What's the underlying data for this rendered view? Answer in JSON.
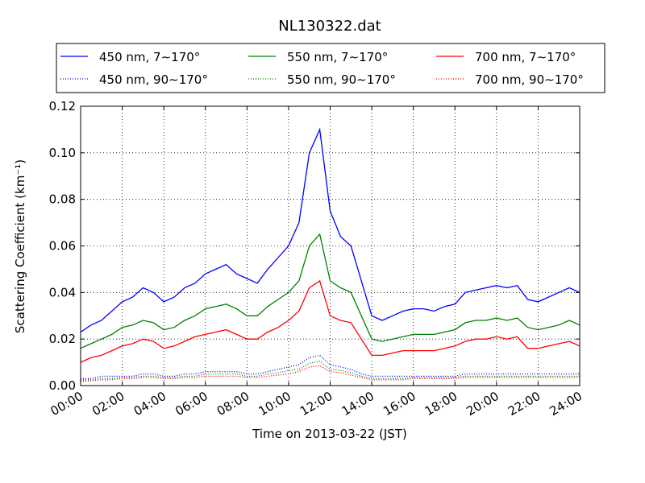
{
  "chart_data": {
    "type": "line",
    "title": "NL130322.dat",
    "x_label": "Time on 2013-03-22 (JST)",
    "y_label": "Scattering Coefficient (km⁻¹)",
    "x": [
      0,
      0.5,
      1,
      1.5,
      2,
      2.5,
      3,
      3.5,
      4,
      4.5,
      5,
      5.5,
      6,
      6.5,
      7,
      7.5,
      8,
      8.5,
      9,
      9.5,
      10,
      10.5,
      11,
      11.5,
      12,
      12.5,
      13,
      13.5,
      14,
      14.5,
      15,
      15.5,
      16,
      16.5,
      17,
      17.5,
      18,
      18.5,
      19,
      19.5,
      20,
      20.5,
      21,
      21.5,
      22,
      22.5,
      23,
      23.5,
      24
    ],
    "series": [
      {
        "name": "450 nm, 7∼170°",
        "color": "#0000ff",
        "dash": "solid",
        "values": [
          0.023,
          0.026,
          0.028,
          0.032,
          0.036,
          0.038,
          0.042,
          0.04,
          0.036,
          0.038,
          0.042,
          0.044,
          0.048,
          0.05,
          0.052,
          0.048,
          0.046,
          0.044,
          0.05,
          0.055,
          0.06,
          0.07,
          0.1,
          0.11,
          0.075,
          0.064,
          0.06,
          0.045,
          0.03,
          0.028,
          0.03,
          0.032,
          0.033,
          0.033,
          0.032,
          0.034,
          0.035,
          0.04,
          0.041,
          0.042,
          0.043,
          0.042,
          0.043,
          0.037,
          0.036,
          0.038,
          0.04,
          0.042,
          0.04
        ]
      },
      {
        "name": "450 nm, 90∼170°",
        "color": "#0000ff",
        "dash": "dotted",
        "values": [
          0.003,
          0.003,
          0.004,
          0.004,
          0.004,
          0.004,
          0.005,
          0.005,
          0.004,
          0.004,
          0.005,
          0.005,
          0.006,
          0.006,
          0.006,
          0.006,
          0.005,
          0.005,
          0.006,
          0.007,
          0.008,
          0.009,
          0.012,
          0.013,
          0.009,
          0.008,
          0.007,
          0.005,
          0.004,
          0.004,
          0.004,
          0.004,
          0.004,
          0.004,
          0.004,
          0.004,
          0.004,
          0.005,
          0.005,
          0.005,
          0.005,
          0.005,
          0.005,
          0.005,
          0.005,
          0.005,
          0.005,
          0.005,
          0.005
        ]
      },
      {
        "name": "550 nm, 7∼170°",
        "color": "#008000",
        "dash": "solid",
        "values": [
          0.016,
          0.018,
          0.02,
          0.022,
          0.025,
          0.026,
          0.028,
          0.027,
          0.024,
          0.025,
          0.028,
          0.03,
          0.033,
          0.034,
          0.035,
          0.033,
          0.03,
          0.03,
          0.034,
          0.037,
          0.04,
          0.045,
          0.06,
          0.065,
          0.045,
          0.042,
          0.04,
          0.03,
          0.02,
          0.019,
          0.02,
          0.021,
          0.022,
          0.022,
          0.022,
          0.023,
          0.024,
          0.027,
          0.028,
          0.028,
          0.029,
          0.028,
          0.029,
          0.025,
          0.024,
          0.025,
          0.026,
          0.028,
          0.026
        ]
      },
      {
        "name": "550 nm, 90∼170°",
        "color": "#008000",
        "dash": "dotted",
        "values": [
          0.0025,
          0.0025,
          0.003,
          0.003,
          0.0035,
          0.0035,
          0.004,
          0.004,
          0.0035,
          0.0035,
          0.004,
          0.004,
          0.005,
          0.005,
          0.005,
          0.005,
          0.004,
          0.004,
          0.005,
          0.0055,
          0.0065,
          0.007,
          0.0095,
          0.0105,
          0.007,
          0.0065,
          0.0055,
          0.004,
          0.003,
          0.003,
          0.003,
          0.003,
          0.0035,
          0.0035,
          0.0035,
          0.0035,
          0.0035,
          0.004,
          0.004,
          0.004,
          0.004,
          0.004,
          0.004,
          0.004,
          0.004,
          0.004,
          0.004,
          0.004,
          0.004
        ]
      },
      {
        "name": "700 nm, 7∼170°",
        "color": "#ff0000",
        "dash": "solid",
        "values": [
          0.01,
          0.012,
          0.013,
          0.015,
          0.017,
          0.018,
          0.02,
          0.019,
          0.016,
          0.017,
          0.019,
          0.021,
          0.022,
          0.023,
          0.024,
          0.022,
          0.02,
          0.02,
          0.023,
          0.025,
          0.028,
          0.032,
          0.042,
          0.045,
          0.03,
          0.028,
          0.027,
          0.02,
          0.013,
          0.013,
          0.014,
          0.015,
          0.015,
          0.015,
          0.015,
          0.016,
          0.017,
          0.019,
          0.02,
          0.02,
          0.021,
          0.02,
          0.021,
          0.016,
          0.016,
          0.017,
          0.018,
          0.019,
          0.017
        ]
      },
      {
        "name": "700 nm, 90∼170°",
        "color": "#ff0000",
        "dash": "dotted",
        "values": [
          0.002,
          0.002,
          0.0025,
          0.0025,
          0.003,
          0.003,
          0.0035,
          0.0035,
          0.003,
          0.003,
          0.0035,
          0.0035,
          0.004,
          0.004,
          0.004,
          0.004,
          0.0035,
          0.0035,
          0.004,
          0.0045,
          0.005,
          0.006,
          0.008,
          0.0085,
          0.006,
          0.0055,
          0.0045,
          0.0035,
          0.0025,
          0.0025,
          0.0025,
          0.0025,
          0.003,
          0.003,
          0.003,
          0.003,
          0.003,
          0.0035,
          0.0035,
          0.0035,
          0.0035,
          0.0035,
          0.0035,
          0.0035,
          0.0035,
          0.0035,
          0.0035,
          0.0035,
          0.0035
        ]
      }
    ],
    "xlim": [
      0,
      24
    ],
    "xticks": [
      {
        "value": 0,
        "label": "00:00"
      },
      {
        "value": 2,
        "label": "02:00"
      },
      {
        "value": 4,
        "label": "04:00"
      },
      {
        "value": 6,
        "label": "06:00"
      },
      {
        "value": 8,
        "label": "08:00"
      },
      {
        "value": 10,
        "label": "10:00"
      },
      {
        "value": 12,
        "label": "12:00"
      },
      {
        "value": 14,
        "label": "14:00"
      },
      {
        "value": 16,
        "label": "16:00"
      },
      {
        "value": 18,
        "label": "18:00"
      },
      {
        "value": 20,
        "label": "20:00"
      },
      {
        "value": 22,
        "label": "22:00"
      },
      {
        "value": 24,
        "label": "24:00"
      }
    ],
    "ylim": [
      0,
      0.12
    ],
    "yticks": [
      {
        "value": 0,
        "label": "0.00"
      },
      {
        "value": 0.02,
        "label": "0.02"
      },
      {
        "value": 0.04,
        "label": "0.04"
      },
      {
        "value": 0.06,
        "label": "0.06"
      },
      {
        "value": 0.08,
        "label": "0.08"
      },
      {
        "value": 0.1,
        "label": "0.10"
      },
      {
        "value": 0.12,
        "label": "0.12"
      }
    ],
    "grid": true,
    "legend": "top"
  }
}
